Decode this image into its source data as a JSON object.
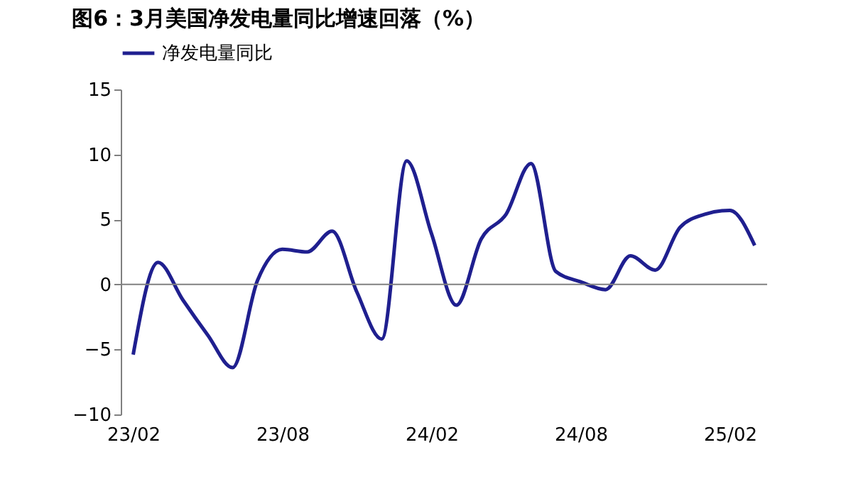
{
  "chart_data": {
    "type": "line",
    "title": "图6：3月美国净发电量同比增速回落（%）",
    "categories": [
      "23/02",
      null,
      null,
      null,
      null,
      null,
      "23/08",
      null,
      null,
      null,
      null,
      null,
      "24/02",
      null,
      null,
      null,
      null,
      null,
      "24/08",
      null,
      null,
      null,
      null,
      null,
      "25/02",
      null
    ],
    "series": [
      {
        "name": "净发电量同比",
        "color": "#1f1f8f",
        "values": [
          -5.4,
          1.7,
          -1.2,
          -3.9,
          -6.4,
          0.3,
          2.7,
          2.5,
          4.1,
          -0.6,
          -4.2,
          9.5,
          3.9,
          -1.6,
          3.5,
          5.4,
          9.3,
          1.0,
          0.2,
          -0.4,
          2.2,
          1.1,
          4.4,
          5.4,
          5.7,
          3.0
        ]
      }
    ],
    "ylim": [
      -10,
      15
    ],
    "yticks": [
      -10,
      -5,
      0,
      5,
      10,
      15
    ],
    "grid": false,
    "legend": "top",
    "marker": "none",
    "ref_lines": [
      {
        "axis": "y",
        "value": 0,
        "color": "#808080"
      }
    ]
  }
}
